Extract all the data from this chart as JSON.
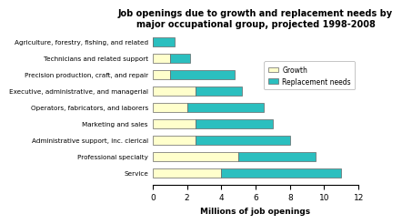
{
  "title": "Job openings due to growth and replacement needs by\nmajor occupational group, projected 1998-2008",
  "categories": [
    "Agriculture, forestry, fishing, and related",
    "Technicians and related support",
    "Precision production, craft, and repair",
    "Executive, administrative, and managerial",
    "Operators, fabricators, and laborers",
    "Marketing and sales",
    "Administrative support, inc. clerical",
    "Professional specialty",
    "Service"
  ],
  "growth": [
    0.0,
    1.0,
    1.0,
    2.5,
    2.0,
    2.5,
    2.5,
    5.0,
    4.0
  ],
  "replacement": [
    1.3,
    1.2,
    3.8,
    2.7,
    4.5,
    4.5,
    5.5,
    4.5,
    7.0
  ],
  "growth_color": "#FFFFCC",
  "replacement_color": "#2BBFBF",
  "xlabel": "Millions of job openings",
  "xlim": [
    0,
    12
  ],
  "xticks": [
    0,
    2,
    4,
    6,
    8,
    10,
    12
  ],
  "bar_height": 0.55,
  "background_color": "#ffffff",
  "legend_growth": "Growth",
  "legend_replacement": "Replacement needs"
}
